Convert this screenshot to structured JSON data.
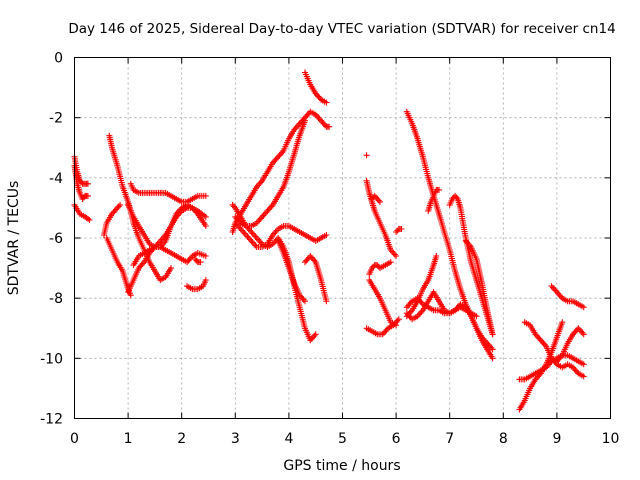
{
  "chart_data": {
    "type": "scatter",
    "title": "Day 146 of 2025, Sidereal Day-to-day VTEC variation (SDTVAR) for receiver cn14",
    "xlabel": "GPS time / hours",
    "ylabel": "SDTVAR / TECUs",
    "xlim": [
      0,
      10
    ],
    "ylim": [
      -12,
      0
    ],
    "xticks": [
      "0",
      "1",
      "2",
      "3",
      "4",
      "5",
      "6",
      "7",
      "8",
      "9",
      "10"
    ],
    "yticks": [
      "0",
      "-2",
      "-4",
      "-6",
      "-8",
      "-10",
      "-12"
    ],
    "grid": true,
    "marker": "+",
    "color": "#ff0000",
    "series": [
      {
        "x": [
          0.0,
          0.05,
          0.1,
          0.15,
          0.2,
          0.25
        ],
        "y": [
          -3.3,
          -3.8,
          -4.1,
          -4.2,
          -4.2,
          -4.2
        ]
      },
      {
        "x": [
          0.0,
          0.05,
          0.1,
          0.15,
          0.2,
          0.25
        ],
        "y": [
          -3.6,
          -4.2,
          -4.5,
          -4.7,
          -4.6,
          -4.6
        ]
      },
      {
        "x": [
          0.0,
          0.1,
          0.2,
          0.28
        ],
        "y": [
          -4.9,
          -5.2,
          -5.3,
          -5.4
        ]
      },
      {
        "x": [
          0.55,
          0.6,
          0.7,
          0.8,
          0.85
        ],
        "y": [
          -5.9,
          -5.5,
          -5.2,
          -5.0,
          -4.9
        ]
      },
      {
        "x": [
          0.65,
          0.7,
          0.8,
          0.9,
          1.0,
          1.05,
          1.1,
          1.2,
          1.3,
          1.4,
          1.5,
          1.6,
          1.7,
          1.8
        ],
        "y": [
          -2.6,
          -3.0,
          -3.6,
          -4.3,
          -4.8,
          -5.1,
          -5.5,
          -6.0,
          -6.4,
          -6.8,
          -7.1,
          -7.4,
          -7.3,
          -7.0
        ]
      },
      {
        "x": [
          0.6,
          0.7,
          0.8,
          0.9,
          1.0,
          1.05
        ],
        "y": [
          -6.0,
          -6.4,
          -6.8,
          -7.1,
          -7.7,
          -7.9
        ]
      },
      {
        "x": [
          1.05,
          1.1,
          1.2,
          1.3,
          1.4,
          1.5,
          1.6,
          1.7,
          1.8,
          1.9,
          2.0,
          2.1,
          2.2,
          2.3,
          2.45
        ],
        "y": [
          -4.2,
          -4.4,
          -4.5,
          -4.5,
          -4.5,
          -4.5,
          -4.5,
          -4.5,
          -4.6,
          -4.7,
          -4.8,
          -4.8,
          -4.7,
          -4.6,
          -4.6
        ]
      },
      {
        "x": [
          1.0,
          1.1,
          1.2,
          1.3,
          1.4,
          1.5,
          1.6,
          1.7,
          1.8,
          1.9,
          2.0,
          2.1,
          2.2,
          2.3,
          2.45
        ],
        "y": [
          -7.8,
          -7.4,
          -7.0,
          -6.8,
          -6.5,
          -6.3,
          -6.1,
          -5.9,
          -5.6,
          -5.3,
          -5.1,
          -5.0,
          -5.0,
          -5.1,
          -5.3
        ]
      },
      {
        "x": [
          1.0,
          1.1,
          1.2,
          1.3,
          1.4,
          1.5,
          1.6,
          1.7,
          1.8,
          1.9,
          2.0,
          2.1,
          2.2,
          2.3,
          2.45
        ],
        "y": [
          -4.9,
          -5.3,
          -5.6,
          -5.9,
          -6.2,
          -6.3,
          -6.3,
          -6.1,
          -5.6,
          -5.2,
          -5.0,
          -4.9,
          -5.0,
          -5.2,
          -5.6
        ]
      },
      {
        "x": [
          1.1,
          1.2,
          1.3,
          1.4,
          1.5,
          1.6,
          1.7,
          1.8,
          1.9,
          2.0,
          2.1,
          2.2,
          2.3,
          2.45
        ],
        "y": [
          -6.9,
          -6.6,
          -6.5,
          -6.4,
          -6.3,
          -6.3,
          -6.4,
          -6.5,
          -6.6,
          -6.7,
          -6.8,
          -6.6,
          -6.5,
          -6.6
        ]
      },
      {
        "x": [
          2.1,
          2.2,
          2.3,
          2.4,
          2.45
        ],
        "y": [
          -7.6,
          -7.7,
          -7.7,
          -7.6,
          -7.4
        ]
      },
      {
        "x": [
          2.95,
          3.0,
          3.1,
          3.2,
          3.3,
          3.4,
          3.5,
          3.6,
          3.7,
          3.8,
          3.9,
          4.0,
          4.1,
          4.2,
          4.3,
          4.4,
          4.5,
          4.6,
          4.7,
          4.75
        ],
        "y": [
          -5.8,
          -5.5,
          -5.2,
          -4.9,
          -4.6,
          -4.3,
          -4.1,
          -3.8,
          -3.5,
          -3.3,
          -3.1,
          -2.7,
          -2.4,
          -2.2,
          -2.0,
          -1.8,
          -1.9,
          -2.1,
          -2.3,
          -2.3
        ]
      },
      {
        "x": [
          3.0,
          3.1,
          3.2,
          3.3,
          3.4,
          3.5,
          3.6,
          3.7,
          3.8,
          3.9,
          4.0,
          4.1,
          4.2,
          4.3
        ],
        "y": [
          -5.3,
          -5.5,
          -5.6,
          -5.6,
          -5.5,
          -5.3,
          -5.1,
          -4.9,
          -4.6,
          -4.3,
          -3.8,
          -3.2,
          -2.6,
          -2.1
        ]
      },
      {
        "x": [
          3.0,
          3.1,
          3.2,
          3.3,
          3.4,
          3.5,
          3.6,
          3.7,
          3.8,
          3.9,
          4.0,
          4.1,
          4.2,
          4.3,
          4.4,
          4.5,
          4.6,
          4.7
        ],
        "y": [
          -5.5,
          -5.7,
          -5.9,
          -6.1,
          -6.3,
          -6.3,
          -6.2,
          -5.9,
          -5.7,
          -5.6,
          -5.6,
          -5.7,
          -5.8,
          -5.9,
          -6.0,
          -6.1,
          -6.0,
          -5.9
        ]
      },
      {
        "x": [
          2.95,
          3.0,
          3.1,
          3.2,
          3.3,
          3.4,
          3.5,
          3.6,
          3.7,
          3.8,
          3.9,
          4.0,
          4.1,
          4.2,
          4.3,
          4.4,
          4.5
        ],
        "y": [
          -4.9,
          -5.0,
          -5.3,
          -5.6,
          -5.8,
          -6.0,
          -6.2,
          -6.3,
          -6.2,
          -6.0,
          -6.3,
          -6.8,
          -7.6,
          -8.3,
          -9.0,
          -9.4,
          -9.2
        ]
      },
      {
        "x": [
          3.8,
          3.9,
          4.0,
          4.1,
          4.2,
          4.3
        ],
        "y": [
          -6.1,
          -6.5,
          -7.0,
          -7.5,
          -7.9,
          -8.1
        ]
      },
      {
        "x": [
          4.3,
          4.4,
          4.5,
          4.6,
          4.7
        ],
        "y": [
          -6.8,
          -6.6,
          -6.8,
          -7.4,
          -8.1
        ]
      },
      {
        "x": [
          4.3,
          4.35,
          4.4,
          4.5,
          4.6,
          4.7
        ],
        "y": [
          -0.5,
          -0.7,
          -0.9,
          -1.2,
          -1.4,
          -1.5
        ]
      },
      {
        "x": [
          2.25,
          2.3,
          2.35
        ],
        "y": [
          -6.7,
          -6.8,
          -6.8
        ]
      },
      {
        "x": [
          5.45,
          5.5,
          5.55,
          5.6,
          5.7,
          5.8,
          5.9,
          6.0
        ],
        "y": [
          -4.1,
          -4.5,
          -4.8,
          -5.1,
          -5.5,
          -5.9,
          -6.4,
          -6.6
        ]
      },
      {
        "x": [
          5.5,
          5.55,
          5.6,
          5.65,
          5.7,
          5.8,
          5.9
        ],
        "y": [
          -7.2,
          -7.0,
          -6.9,
          -6.9,
          -7.0,
          -6.9,
          -6.8
        ]
      },
      {
        "x": [
          5.5,
          5.6,
          5.7,
          5.8,
          5.9,
          6.0
        ],
        "y": [
          -7.4,
          -7.7,
          -8.0,
          -8.4,
          -8.8,
          -8.9
        ]
      },
      {
        "x": [
          5.45,
          5.55,
          5.65,
          5.75,
          5.85,
          5.95,
          6.05
        ],
        "y": [
          -9.0,
          -9.1,
          -9.2,
          -9.2,
          -9.0,
          -8.9,
          -8.7
        ]
      },
      {
        "x": [
          5.55,
          5.6,
          5.65,
          5.7
        ],
        "y": [
          -4.7,
          -4.6,
          -4.7,
          -4.8
        ]
      },
      {
        "x": [
          6.2,
          6.3,
          6.4,
          6.5,
          6.6,
          6.7,
          6.8,
          6.9,
          7.0,
          7.1,
          7.2,
          7.3,
          7.4,
          7.5,
          7.6,
          7.7,
          7.8
        ],
        "y": [
          -1.8,
          -2.2,
          -2.7,
          -3.3,
          -4.0,
          -4.6,
          -5.2,
          -5.8,
          -6.4,
          -7.1,
          -7.7,
          -8.2,
          -8.6,
          -9.0,
          -9.4,
          -9.7,
          -10.0
        ]
      },
      {
        "x": [
          6.6,
          6.65,
          6.7,
          6.75,
          6.8
        ],
        "y": [
          -5.1,
          -4.8,
          -4.6,
          -4.4,
          -4.4
        ]
      },
      {
        "x": [
          6.2,
          6.3,
          6.4,
          6.5,
          6.6,
          6.7,
          6.75
        ],
        "y": [
          -8.6,
          -8.4,
          -8.1,
          -7.7,
          -7.4,
          -6.9,
          -6.6
        ]
      },
      {
        "x": [
          6.2,
          6.3,
          6.4,
          6.5,
          6.6,
          6.7,
          6.8,
          6.9,
          7.0,
          7.1,
          7.2,
          7.3,
          7.4,
          7.5,
          7.6,
          7.7,
          7.8
        ],
        "y": [
          -8.5,
          -8.7,
          -8.6,
          -8.4,
          -8.1,
          -7.8,
          -8.1,
          -8.4,
          -8.5,
          -8.4,
          -8.2,
          -8.3,
          -8.6,
          -9.0,
          -9.3,
          -9.5,
          -9.7
        ]
      },
      {
        "x": [
          6.2,
          6.3,
          6.4,
          6.5,
          6.6,
          6.7,
          6.8,
          6.9,
          7.0,
          7.1,
          7.2,
          7.3,
          7.4,
          7.5
        ],
        "y": [
          -8.3,
          -8.1,
          -8.0,
          -8.2,
          -8.3,
          -8.4,
          -8.4,
          -8.5,
          -8.5,
          -8.4,
          -8.3,
          -8.4,
          -8.5,
          -8.6
        ]
      },
      {
        "x": [
          7.0,
          7.05,
          7.1,
          7.15,
          7.2,
          7.3,
          7.4,
          7.5,
          7.6,
          7.7,
          7.8
        ],
        "y": [
          -4.9,
          -4.7,
          -4.6,
          -4.7,
          -5.0,
          -6.0,
          -6.8,
          -7.4,
          -8.0,
          -8.6,
          -9.2
        ]
      },
      {
        "x": [
          7.3,
          7.4,
          7.5,
          7.6,
          7.7,
          7.8
        ],
        "y": [
          -6.1,
          -6.3,
          -6.7,
          -7.5,
          -8.4,
          -9.2
        ]
      },
      {
        "x": [
          8.3,
          8.4,
          8.5,
          8.6,
          8.7,
          8.8,
          8.9,
          9.0,
          9.1
        ],
        "y": [
          -11.7,
          -11.4,
          -11.0,
          -10.7,
          -10.5,
          -10.2,
          -9.8,
          -9.3,
          -8.8
        ]
      },
      {
        "x": [
          8.4,
          8.5,
          8.6,
          8.7,
          8.8,
          8.9,
          9.0,
          9.1,
          9.2,
          9.3,
          9.4,
          9.5
        ],
        "y": [
          -8.8,
          -8.9,
          -9.2,
          -9.4,
          -9.6,
          -10.0,
          -10.2,
          -10.3,
          -10.2,
          -10.3,
          -10.5,
          -10.6
        ]
      },
      {
        "x": [
          8.3,
          8.4,
          8.5,
          8.6,
          8.7,
          8.8,
          8.9,
          9.0,
          9.1,
          9.2,
          9.3,
          9.4,
          9.5
        ],
        "y": [
          -10.7,
          -10.7,
          -10.6,
          -10.5,
          -10.4,
          -10.3,
          -10.1,
          -10.0,
          -9.9,
          -9.9,
          -10.0,
          -10.1,
          -10.2
        ]
      },
      {
        "x": [
          8.9,
          9.0,
          9.1,
          9.2,
          9.3,
          9.4,
          9.5
        ],
        "y": [
          -7.6,
          -7.8,
          -8.0,
          -8.1,
          -8.1,
          -8.2,
          -8.3
        ]
      },
      {
        "x": [
          8.9,
          9.0,
          9.1,
          9.2,
          9.3,
          9.4,
          9.5
        ],
        "y": [
          -10.0,
          -10.1,
          -9.9,
          -9.5,
          -9.2,
          -9.0,
          -9.2
        ]
      },
      {
        "x": [
          5.45
        ],
        "y": [
          -3.25
        ]
      },
      {
        "x": [
          6.0,
          6.05,
          6.1
        ],
        "y": [
          -5.8,
          -5.7,
          -5.7
        ]
      },
      {
        "x": [
          0.15,
          0.2
        ],
        "y": [
          -4.7,
          -4.6
        ]
      }
    ]
  }
}
